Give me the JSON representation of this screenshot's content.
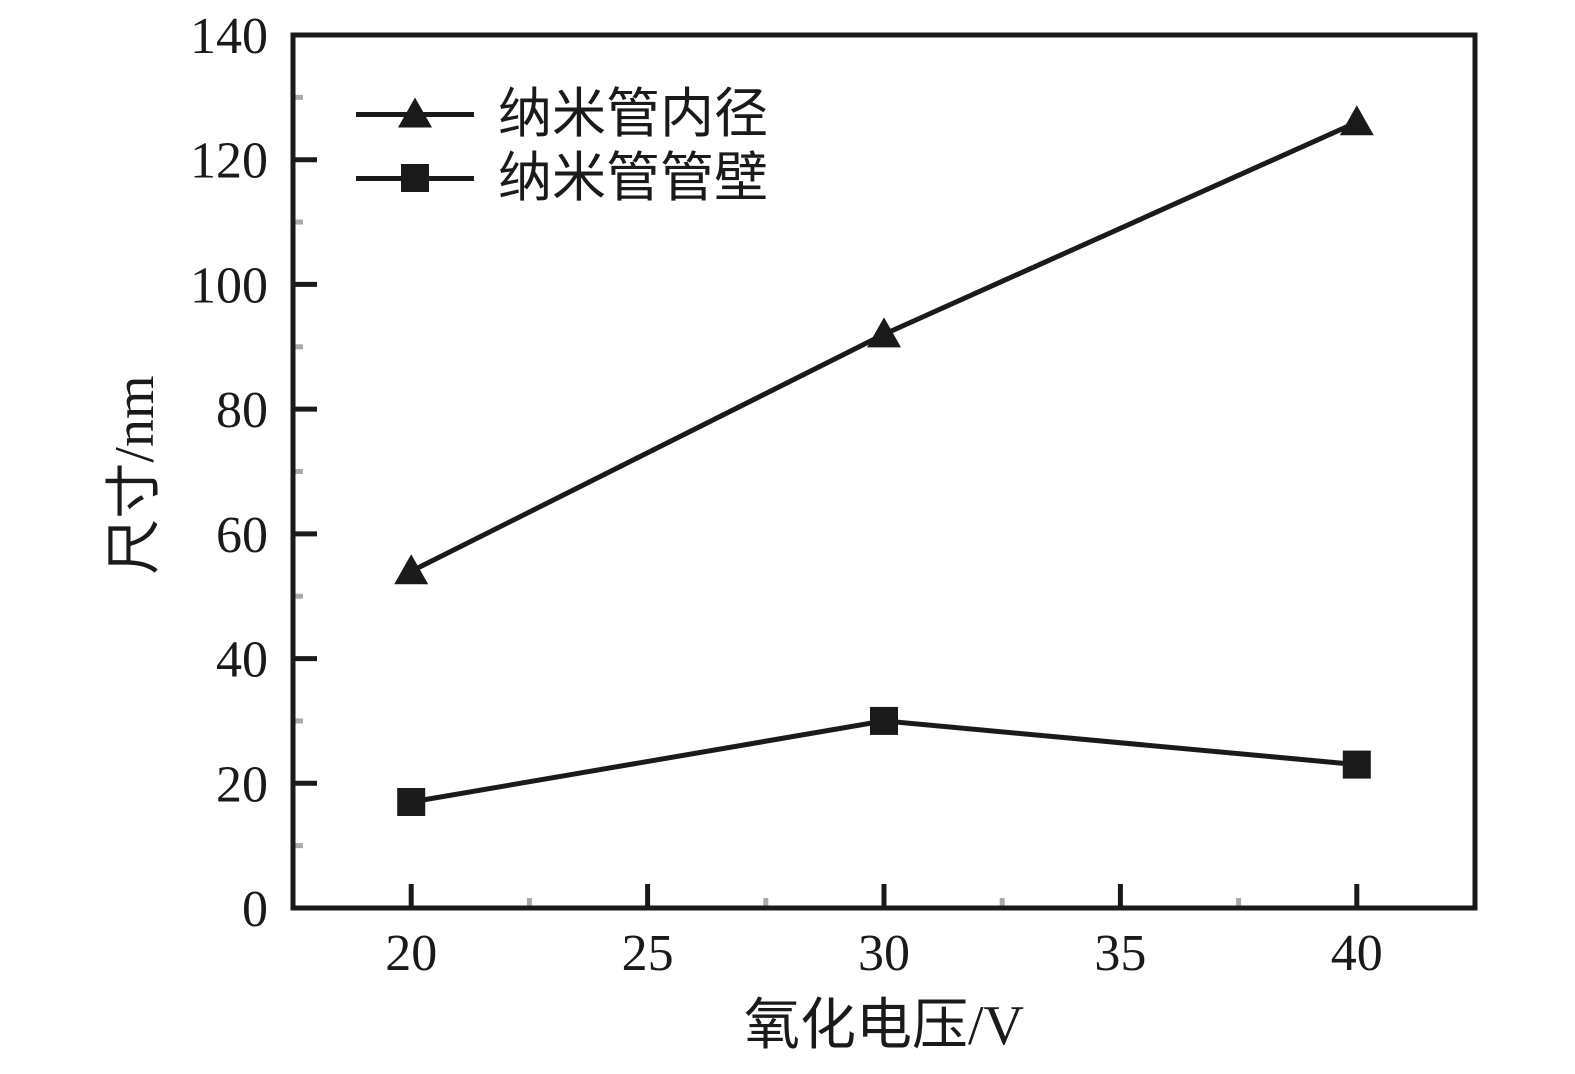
{
  "figure": {
    "background": "#ffffff",
    "ink": "#1a1a1a",
    "minor_tick_color": "#ababab"
  },
  "chart_data": {
    "type": "line",
    "title": "",
    "xlabel": "氧化电压/V",
    "ylabel": "尺寸/nm",
    "x_ticks": [
      20,
      25,
      30,
      35,
      40
    ],
    "y_ticks": [
      0,
      20,
      40,
      60,
      80,
      100,
      120,
      140
    ],
    "xlim": [
      17.5,
      42.5
    ],
    "ylim": [
      0,
      140
    ],
    "x_minor_step": 2.5,
    "y_minor_step": 10,
    "grid": false,
    "frame": "box",
    "tick_direction": "in",
    "legend_position": "top-left-inside",
    "series": [
      {
        "name": "纳米管内径",
        "marker": "triangle",
        "color": "#1a1a1a",
        "x": [
          20,
          30,
          40
        ],
        "values": [
          54,
          92,
          126
        ]
      },
      {
        "name": "纳米管管壁",
        "marker": "square",
        "color": "#1a1a1a",
        "x": [
          20,
          30,
          40
        ],
        "values": [
          17,
          30,
          23
        ]
      }
    ]
  }
}
